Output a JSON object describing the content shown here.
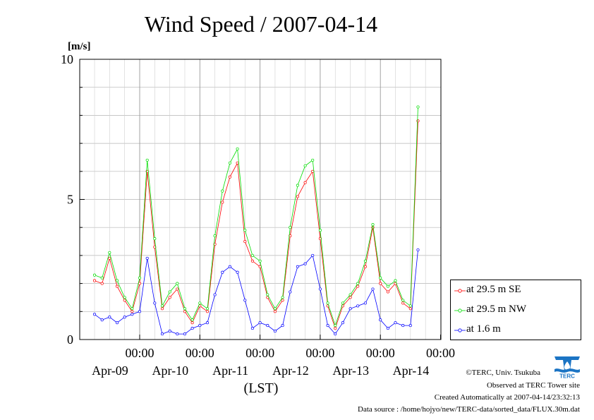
{
  "chart_data": {
    "type": "line",
    "title": "Wind Speed / 2007-04-14",
    "ylabel": "[m/s]",
    "xlabel": "(LST)",
    "ylim": [
      0,
      10
    ],
    "yticks": [
      "0",
      "5",
      "10"
    ],
    "xticks": [
      {
        "time": "00:00",
        "date": "Apr-09"
      },
      {
        "time": "00:00",
        "date": "Apr-10"
      },
      {
        "time": "00:00",
        "date": "Apr-11"
      },
      {
        "time": "00:00",
        "date": "Apr-12"
      },
      {
        "time": "00:00",
        "date": "Apr-13"
      },
      {
        "time": "00:00",
        "date": "Apr-14"
      }
    ],
    "grid": true,
    "legend_position": "bottom-right",
    "series": [
      {
        "name": "at 29.5 m SE",
        "color": "#ff0000",
        "x": [
          "04-08 06:00",
          "04-08 09:00",
          "04-08 12:00",
          "04-08 15:00",
          "04-08 18:00",
          "04-08 21:00",
          "04-09 00:00",
          "04-09 03:00",
          "04-09 06:00",
          "04-09 09:00",
          "04-09 12:00",
          "04-09 15:00",
          "04-09 18:00",
          "04-09 21:00",
          "04-10 00:00",
          "04-10 03:00",
          "04-10 06:00",
          "04-10 09:00",
          "04-10 12:00",
          "04-10 15:00",
          "04-10 18:00",
          "04-10 21:00",
          "04-11 00:00",
          "04-11 03:00",
          "04-11 06:00",
          "04-11 09:00",
          "04-11 12:00",
          "04-11 15:00",
          "04-11 18:00",
          "04-11 21:00",
          "04-12 00:00",
          "04-12 03:00",
          "04-12 06:00",
          "04-12 09:00",
          "04-12 12:00",
          "04-12 15:00",
          "04-12 18:00",
          "04-12 21:00",
          "04-13 00:00",
          "04-13 03:00",
          "04-13 06:00",
          "04-13 09:00",
          "04-13 12:00",
          "04-13 15:00"
        ],
        "values": [
          2.1,
          2.0,
          2.9,
          1.9,
          1.4,
          1.0,
          2.0,
          6.0,
          3.3,
          1.1,
          1.5,
          1.8,
          1.0,
          0.6,
          1.2,
          1.0,
          3.4,
          4.9,
          5.8,
          6.3,
          3.5,
          2.8,
          2.6,
          1.5,
          1.0,
          1.4,
          3.7,
          5.1,
          5.6,
          6.0,
          3.6,
          1.2,
          0.4,
          1.2,
          1.5,
          1.9,
          2.6,
          4.0,
          2.0,
          1.7,
          2.0,
          1.3,
          1.1,
          7.8
        ]
      },
      {
        "name": "at 29.5 m NW",
        "color": "#00ff00",
        "x": [
          "04-08 06:00",
          "04-08 09:00",
          "04-08 12:00",
          "04-08 15:00",
          "04-08 18:00",
          "04-08 21:00",
          "04-09 00:00",
          "04-09 03:00",
          "04-09 06:00",
          "04-09 09:00",
          "04-09 12:00",
          "04-09 15:00",
          "04-09 18:00",
          "04-09 21:00",
          "04-10 00:00",
          "04-10 03:00",
          "04-10 06:00",
          "04-10 09:00",
          "04-10 12:00",
          "04-10 15:00",
          "04-10 18:00",
          "04-10 21:00",
          "04-11 00:00",
          "04-11 03:00",
          "04-11 06:00",
          "04-11 09:00",
          "04-11 12:00",
          "04-11 15:00",
          "04-11 18:00",
          "04-11 21:00",
          "04-12 00:00",
          "04-12 03:00",
          "04-12 06:00",
          "04-12 09:00",
          "04-12 12:00",
          "04-12 15:00",
          "04-12 18:00",
          "04-12 21:00",
          "04-13 00:00",
          "04-13 03:00",
          "04-13 06:00",
          "04-13 09:00",
          "04-13 12:00",
          "04-13 15:00"
        ],
        "values": [
          2.3,
          2.2,
          3.1,
          2.1,
          1.5,
          1.1,
          2.2,
          6.4,
          3.6,
          1.2,
          1.7,
          2.0,
          1.1,
          0.7,
          1.3,
          1.1,
          3.7,
          5.3,
          6.3,
          6.8,
          3.9,
          3.0,
          2.8,
          1.6,
          1.1,
          1.5,
          4.0,
          5.5,
          6.2,
          6.4,
          3.9,
          1.3,
          0.5,
          1.3,
          1.6,
          2.0,
          2.8,
          4.1,
          2.2,
          1.9,
          2.1,
          1.4,
          1.2,
          8.3
        ]
      },
      {
        "name": "at 1.6 m",
        "color": "#0000ff",
        "x": [
          "04-08 06:00",
          "04-08 09:00",
          "04-08 12:00",
          "04-08 15:00",
          "04-08 18:00",
          "04-08 21:00",
          "04-09 00:00",
          "04-09 03:00",
          "04-09 06:00",
          "04-09 09:00",
          "04-09 12:00",
          "04-09 15:00",
          "04-09 18:00",
          "04-09 21:00",
          "04-10 00:00",
          "04-10 03:00",
          "04-10 06:00",
          "04-10 09:00",
          "04-10 12:00",
          "04-10 15:00",
          "04-10 18:00",
          "04-10 21:00",
          "04-11 00:00",
          "04-11 03:00",
          "04-11 06:00",
          "04-11 09:00",
          "04-11 12:00",
          "04-11 15:00",
          "04-11 18:00",
          "04-11 21:00",
          "04-12 00:00",
          "04-12 03:00",
          "04-12 06:00",
          "04-12 09:00",
          "04-12 12:00",
          "04-12 15:00",
          "04-12 18:00",
          "04-12 21:00",
          "04-13 00:00",
          "04-13 03:00",
          "04-13 06:00",
          "04-13 09:00",
          "04-13 12:00",
          "04-13 15:00"
        ],
        "values": [
          0.9,
          0.7,
          0.8,
          0.6,
          0.8,
          0.9,
          1.0,
          2.9,
          1.3,
          0.2,
          0.3,
          0.2,
          0.2,
          0.4,
          0.5,
          0.6,
          1.6,
          2.4,
          2.6,
          2.4,
          1.4,
          0.4,
          0.6,
          0.5,
          0.3,
          0.5,
          1.7,
          2.6,
          2.7,
          3.0,
          1.8,
          0.5,
          0.2,
          0.6,
          1.1,
          1.2,
          1.3,
          1.8,
          0.7,
          0.4,
          0.6,
          0.5,
          0.5,
          3.2
        ]
      }
    ]
  },
  "footer": {
    "copyright": "©TERC, Univ. Tsukuba",
    "observed": "Observed at TERC Tower site",
    "created": "Created Automatically at 2007-04-14/23:32:13",
    "source": "Data source : /home/hojyo/new/TERC-data/sorted_data/FLUX.30m.dat"
  },
  "logo": {
    "icon": "terc-logo-icon",
    "text": "TERC",
    "color": "#1b74c4"
  }
}
